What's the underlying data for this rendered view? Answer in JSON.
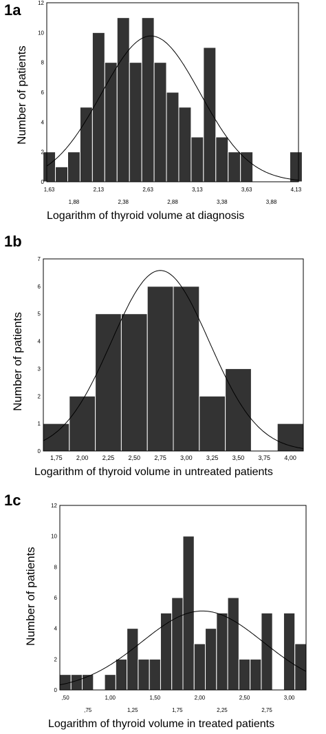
{
  "chart_data": [
    {
      "panel_label": "1a",
      "type": "bar",
      "xlabel": "Logarithm of thyroid volume at diagnosis",
      "ylabel": "Number of patients",
      "ylim": [
        0,
        12
      ],
      "y_ticks": [
        "0",
        "2",
        "4",
        "6",
        "8",
        "10",
        "12"
      ],
      "x_tick_labels_row1": [
        "1,63",
        "2,13",
        "2,63",
        "3,13",
        "3,63",
        "4,13"
      ],
      "x_tick_labels_row2": [
        "1,88",
        "2,38",
        "2,88",
        "3,38",
        "3,88"
      ],
      "x_tick_values_row1": [
        1.63,
        2.13,
        2.63,
        3.13,
        3.63,
        4.13
      ],
      "x_tick_values_row2": [
        1.88,
        2.38,
        2.88,
        3.38,
        3.88
      ],
      "xlim": [
        1.605,
        4.155
      ],
      "bin_width": 0.125,
      "bin_centers": [
        1.63,
        1.755,
        1.88,
        2.005,
        2.13,
        2.255,
        2.38,
        2.505,
        2.63,
        2.755,
        2.88,
        3.005,
        3.13,
        3.255,
        3.38,
        3.505,
        3.63,
        3.755,
        3.88,
        4.005,
        4.13
      ],
      "values": [
        2,
        1,
        2,
        5,
        10,
        8,
        11,
        8,
        11,
        8,
        6,
        5,
        3,
        9,
        3,
        2,
        2,
        0,
        0,
        0,
        2
      ],
      "normal_curve": {
        "mean": 2.66,
        "sd": 0.5
      },
      "grid": false
    },
    {
      "panel_label": "1b",
      "type": "bar",
      "xlabel": "Logarithm of thyroid volume in untreated patients",
      "ylabel": "Number of patients",
      "ylim": [
        0,
        7
      ],
      "y_ticks": [
        "0",
        "1",
        "2",
        "3",
        "4",
        "5",
        "6",
        "7"
      ],
      "x_tick_labels_row1": [
        "1,75",
        "2,00",
        "2,25",
        "2,50",
        "2,75",
        "3,00",
        "3,25",
        "3,50",
        "3,75",
        "4,00"
      ],
      "x_tick_labels_row2": [],
      "x_tick_values_row1": [
        1.75,
        2.0,
        2.25,
        2.5,
        2.75,
        3.0,
        3.25,
        3.5,
        3.75,
        4.0
      ],
      "x_tick_values_row2": [],
      "xlim": [
        1.625,
        4.125
      ],
      "bin_width": 0.25,
      "bin_centers": [
        1.75,
        2.0,
        2.25,
        2.5,
        2.75,
        3.0,
        3.25,
        3.5,
        3.75,
        4.0
      ],
      "values": [
        1,
        2,
        5,
        5,
        6,
        6,
        2,
        3,
        0,
        1
      ],
      "normal_curve": {
        "mean": 2.75,
        "sd": 0.47
      },
      "grid": false
    },
    {
      "panel_label": "1c",
      "type": "bar",
      "xlabel": "Logarithm of thyroid volume in treated patients",
      "ylabel": "Number of patients",
      "ylim": [
        0,
        12
      ],
      "y_ticks": [
        "0",
        "2",
        "4",
        "6",
        "8",
        "10",
        "12"
      ],
      "x_tick_labels_row1": [
        ",50",
        "1,00",
        "1,50",
        "2,00",
        "2,50",
        "3,00"
      ],
      "x_tick_labels_row2": [
        ",75",
        "1,25",
        "1,75",
        "2,25",
        "2,75"
      ],
      "x_tick_values_row1": [
        0.5,
        1.0,
        1.5,
        2.0,
        2.5,
        3.0
      ],
      "x_tick_values_row2": [
        0.75,
        1.25,
        1.75,
        2.25,
        2.75
      ],
      "xlim": [
        0.4375,
        3.1875
      ],
      "bin_width": 0.125,
      "bin_centers": [
        0.5,
        0.625,
        0.75,
        0.875,
        1.0,
        1.125,
        1.25,
        1.375,
        1.5,
        1.625,
        1.75,
        1.875,
        2.0,
        2.125,
        2.25,
        2.375,
        2.5,
        2.625,
        2.75,
        2.875,
        3.0,
        3.125
      ],
      "values": [
        1,
        1,
        1,
        0,
        1,
        2,
        4,
        2,
        2,
        5,
        6,
        10,
        3,
        4,
        5,
        6,
        2,
        2,
        5,
        0,
        5,
        3
      ],
      "normal_curve": {
        "mean": 2.03,
        "sd": 0.68
      },
      "grid": false
    }
  ]
}
